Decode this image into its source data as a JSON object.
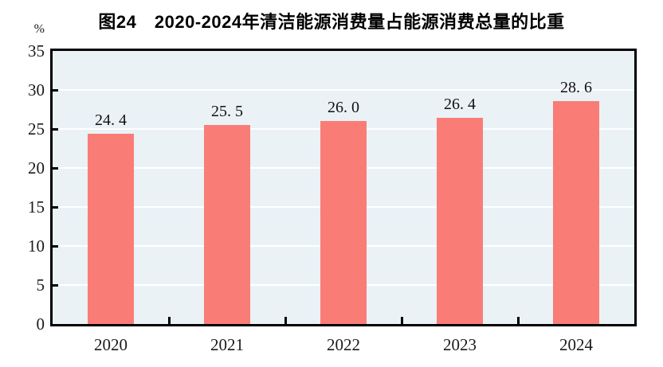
{
  "title": "图24　2020-2024年清洁能源消费量占能源消费总量的比重",
  "unit_label": "%",
  "colors": {
    "bar": "#FA7C77",
    "plot_background": "#EAF2F6",
    "gridline": "#FFFFFF",
    "axis": "#000000",
    "title_text": "#000000",
    "tick_text": "#1a1a1a"
  },
  "chart_data": {
    "type": "bar",
    "title": "图24　2020-2024年清洁能源消费量占能源消费总量的比重",
    "categories": [
      "2020",
      "2021",
      "2022",
      "2023",
      "2024"
    ],
    "values": [
      24.4,
      25.5,
      26.0,
      26.4,
      28.6
    ],
    "value_labels": [
      "24. 4",
      "25. 5",
      "26. 0",
      "26. 4",
      "28. 6"
    ],
    "xlabel": "",
    "ylabel": "%",
    "ylim": [
      0,
      35
    ],
    "yticks": [
      0,
      5,
      10,
      15,
      20,
      25,
      30,
      35
    ],
    "grid": true,
    "legend_position": "none"
  }
}
